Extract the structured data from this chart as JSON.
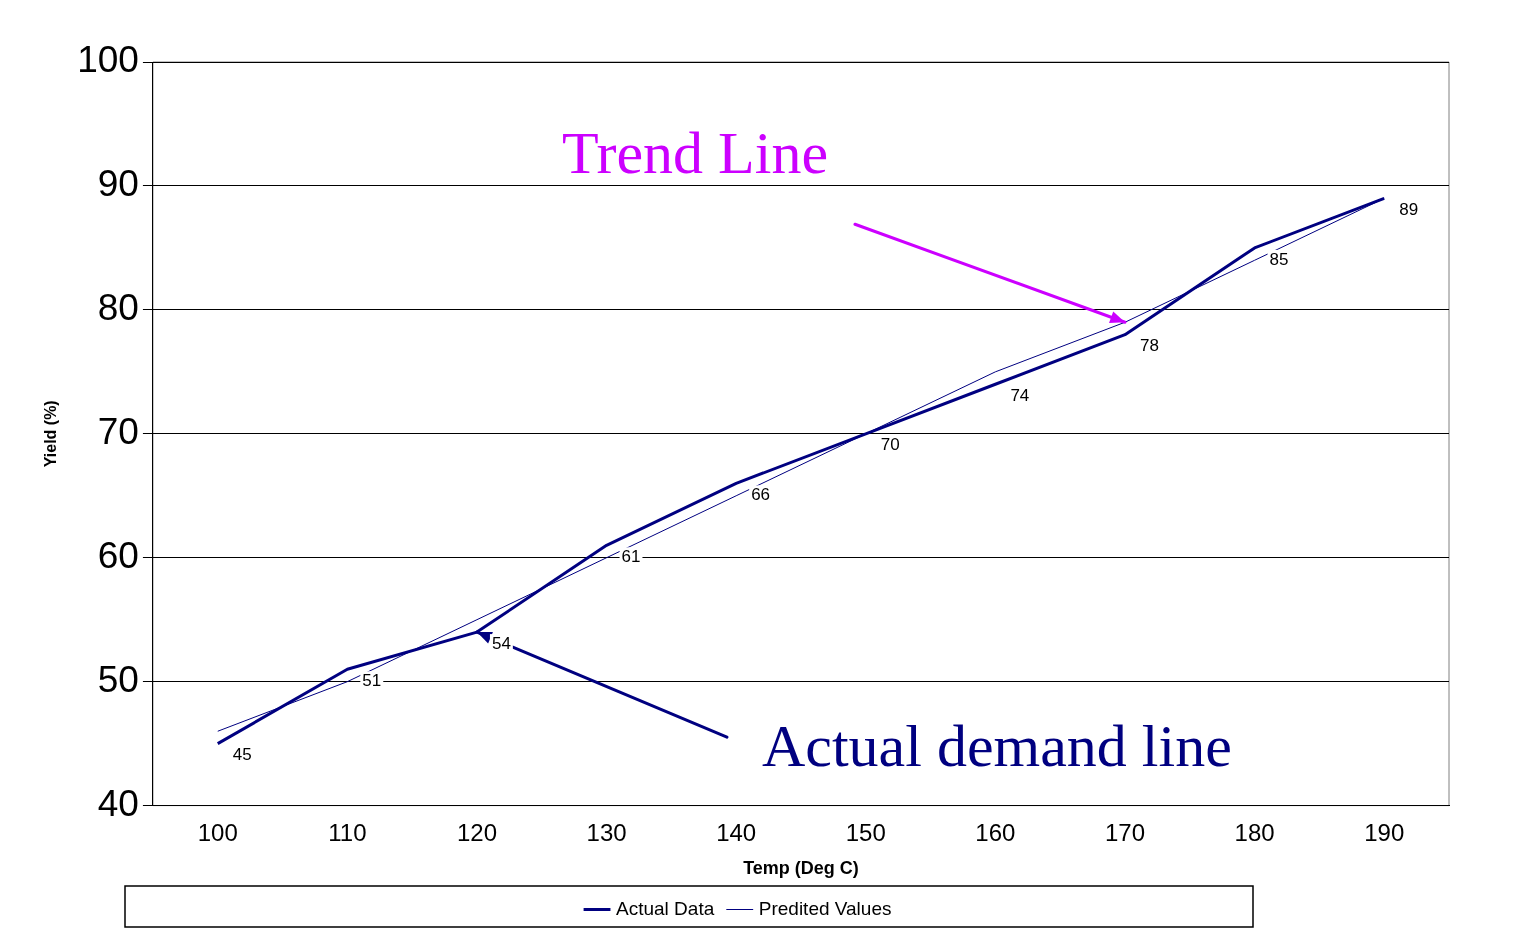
{
  "chart_data": {
    "type": "line",
    "xlabel": "Temp (Deg C)",
    "ylabel": "Yield (%)",
    "categories": [
      "100",
      "110",
      "120",
      "130",
      "140",
      "150",
      "160",
      "170",
      "180",
      "190"
    ],
    "series": [
      {
        "name": "Actual Data",
        "color": "#000080",
        "values": [
          45,
          51,
          54,
          61,
          66,
          70,
          74,
          78,
          85,
          89
        ],
        "value_labels": [
          "45",
          "51",
          "54",
          "61",
          "66",
          "70",
          "74",
          "78",
          "85",
          "89"
        ]
      },
      {
        "name": "Predited Values",
        "color": "#000080",
        "values": [
          46,
          50,
          55,
          60,
          65,
          70,
          75,
          79,
          84,
          89
        ]
      }
    ],
    "ylim": [
      40,
      100
    ],
    "yticks": [
      40,
      50,
      60,
      70,
      80,
      90,
      100
    ],
    "grid": "y",
    "legend": "bottom",
    "marker": "none",
    "annotations": [
      {
        "text": "Trend Line",
        "x": "170",
        "y": 79
      },
      {
        "text": "Actual demand line",
        "x": "120",
        "y": 54
      }
    ]
  }
}
